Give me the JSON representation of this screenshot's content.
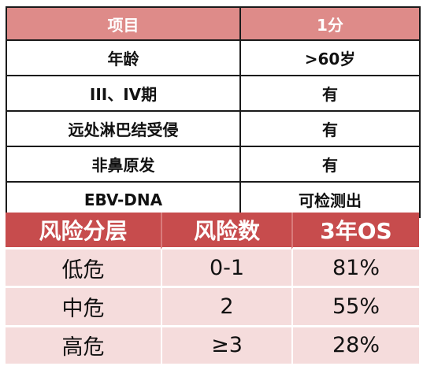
{
  "criteria_table": {
    "headers": [
      "项目",
      "1分"
    ],
    "rows": [
      [
        "年龄",
        ">60岁"
      ],
      [
        "III、IV期",
        "有"
      ],
      [
        "远处淋巴结受侵",
        "有"
      ],
      [
        "非鼻原发",
        "有"
      ],
      [
        "EBV-DNA",
        "可检测出"
      ]
    ]
  },
  "risk_table": {
    "headers": [
      "风险分层",
      "风险数",
      "3年OS"
    ],
    "rows": [
      [
        "低危",
        "0-1",
        "81%"
      ],
      [
        "中危",
        "2",
        "55%"
      ],
      [
        "高危",
        "≥3",
        "28%"
      ]
    ]
  },
  "colors": {
    "criteria_header_bg": "#de8b89",
    "risk_header_bg": "#c74c4d",
    "risk_row_bg": "#f5dcdc",
    "border": "#1a1a1a"
  }
}
